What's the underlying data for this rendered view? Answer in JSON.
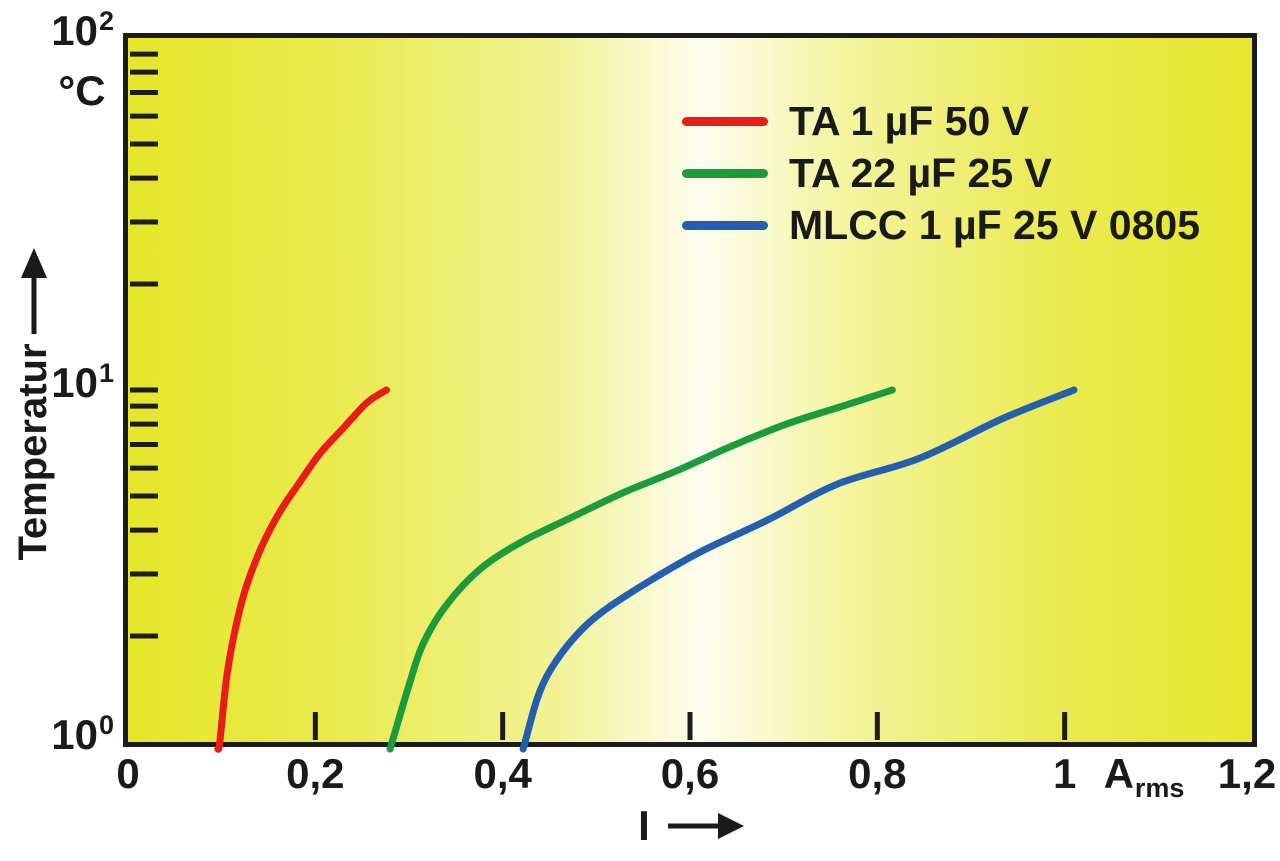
{
  "chart_data": {
    "type": "line",
    "title": "",
    "xlabel": "I",
    "x_unit": {
      "base": "A",
      "sub": "rms"
    },
    "ylabel": "Temperatur",
    "y_unit": "°C",
    "x_scale": "linear",
    "y_scale": "log10",
    "xlim": [
      0,
      1.2
    ],
    "ylim": [
      1,
      100
    ],
    "grid": false,
    "legend_position": "top-right-inside",
    "plot_background": "horizontal gradient yellow → near-white → yellow",
    "x_ticks": [
      {
        "value": 0,
        "label": "0"
      },
      {
        "value": 0.2,
        "label": "0,2"
      },
      {
        "value": 0.4,
        "label": "0,4"
      },
      {
        "value": 0.6,
        "label": "0,6"
      },
      {
        "value": 0.8,
        "label": "0,8"
      },
      {
        "value": 1,
        "label": "1"
      },
      {
        "value": 1.2,
        "label": "1,2"
      }
    ],
    "y_ticks": [
      {
        "value": 1,
        "base": "10",
        "exp": "0"
      },
      {
        "value": 10,
        "base": "10",
        "exp": "1"
      },
      {
        "value": 100,
        "base": "10",
        "exp": "2"
      }
    ],
    "y_minor_ticks": [
      2,
      3,
      4,
      5,
      6,
      7,
      8,
      9,
      10,
      20,
      30,
      40,
      50,
      60,
      70,
      80,
      90
    ],
    "series": [
      {
        "name": "TA 1 µF 50 V",
        "color": "#ea1b1b",
        "points": [
          [
            0.098,
            1
          ],
          [
            0.105,
            1.5
          ],
          [
            0.113,
            2.0
          ],
          [
            0.125,
            2.7
          ],
          [
            0.143,
            3.6
          ],
          [
            0.162,
            4.5
          ],
          [
            0.184,
            5.5
          ],
          [
            0.205,
            6.6
          ],
          [
            0.23,
            7.8
          ],
          [
            0.255,
            9.2
          ],
          [
            0.276,
            10
          ]
        ]
      },
      {
        "name": "TA 22 µF 25 V",
        "color": "#1a9c3c",
        "points": [
          [
            0.282,
            1
          ],
          [
            0.3,
            1.45
          ],
          [
            0.315,
            1.9
          ],
          [
            0.34,
            2.45
          ],
          [
            0.376,
            3.1
          ],
          [
            0.42,
            3.7
          ],
          [
            0.47,
            4.3
          ],
          [
            0.528,
            5.1
          ],
          [
            0.586,
            5.9
          ],
          [
            0.643,
            6.9
          ],
          [
            0.703,
            8.0
          ],
          [
            0.763,
            9.0
          ],
          [
            0.816,
            10
          ]
        ]
      },
      {
        "name": "MLCC 1 µF 25 V 0805",
        "color": "#235fb0",
        "points": [
          [
            0.424,
            1
          ],
          [
            0.437,
            1.33
          ],
          [
            0.452,
            1.62
          ],
          [
            0.478,
            2.0
          ],
          [
            0.507,
            2.35
          ],
          [
            0.56,
            2.9
          ],
          [
            0.614,
            3.5
          ],
          [
            0.685,
            4.3
          ],
          [
            0.757,
            5.4
          ],
          [
            0.845,
            6.4
          ],
          [
            0.934,
            8.3
          ],
          [
            1.01,
            10
          ]
        ]
      }
    ],
    "colors": {
      "frame": "#1c1c1c",
      "bg_yellow": "#e7e72d",
      "bg_light": "#fdfdf0",
      "text": "#1a1a1a"
    }
  }
}
